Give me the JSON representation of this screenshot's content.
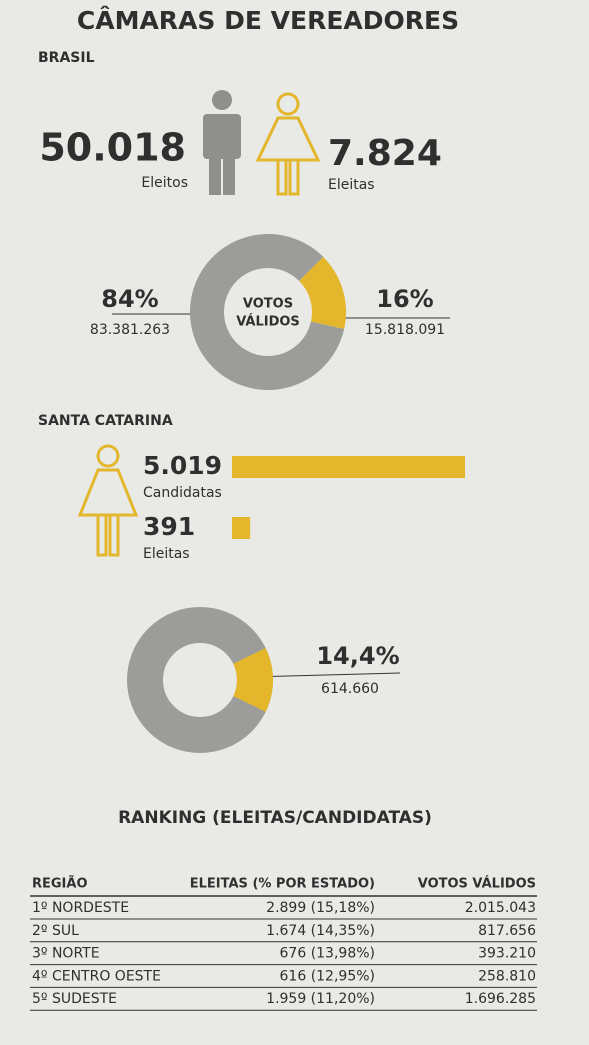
{
  "title": "CÂMARAS DE VEREADORES",
  "brasil": {
    "heading": "BRASIL",
    "men": {
      "count": "50.018",
      "label": "Eleitos"
    },
    "women": {
      "count": "7.824",
      "label": "Eleitas"
    },
    "votes": {
      "type": "pie",
      "center_label": [
        "VOTOS",
        "VÁLIDOS"
      ],
      "values": [
        84,
        16
      ],
      "value_labels": [
        "84%",
        "16%"
      ],
      "counts": [
        "83.381.263",
        "15.818.091"
      ],
      "colors": [
        "#9c9c9a",
        "#e3b62c"
      ]
    }
  },
  "santa_catarina": {
    "heading": "SANTA CATARINA",
    "bars": {
      "type": "bar",
      "categories": [
        "Candidatas",
        "Eleitas"
      ],
      "values": [
        5019,
        391
      ],
      "value_labels": [
        "5.019",
        "391"
      ],
      "color": "#e3b62c"
    },
    "votes": {
      "type": "pie",
      "values": [
        14.4
      ],
      "value_labels": [
        "14,4%"
      ],
      "counts": [
        "614.660"
      ],
      "colors": [
        "#e3b62c"
      ]
    }
  },
  "ranking": {
    "title": "RANKING (ELEITAS/CANDIDATAS)",
    "columns": [
      "REGIÃO",
      "ELEITAS (% POR ESTADO)",
      "VOTOS VÁLIDOS"
    ],
    "rows": [
      [
        "1º NORDESTE",
        "2.899 (15,18%)",
        "2.015.043"
      ],
      [
        "2º SUL",
        "1.674 (14,35%)",
        "817.656"
      ],
      [
        "3º NORTE",
        "676 (13,98%)",
        "393.210"
      ],
      [
        "4º CENTRO OESTE",
        "616 (12,95%)",
        "258.810"
      ],
      [
        "5º SUDESTE",
        "1.959 (11,20%)",
        "1.696.285"
      ]
    ]
  }
}
